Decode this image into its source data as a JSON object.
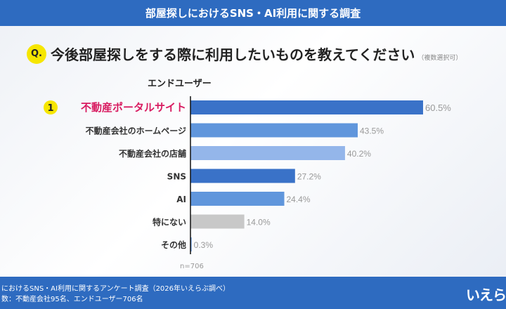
{
  "header": {
    "title": "部屋探しにおけるSNS・AI利用に関する調査"
  },
  "question": {
    "badge": "Q.",
    "text": "今後部屋探しをする際に利用したいものを教えてください",
    "note": "（複数選択可）"
  },
  "chart_data": {
    "type": "bar",
    "orientation": "horizontal",
    "subtitle": "エンドユーザー",
    "categories": [
      "不動産ポータルサイト",
      "不動産会社のホームページ",
      "不動産会社の店舗",
      "SNS",
      "AI",
      "特にない",
      "その他"
    ],
    "values": [
      60.5,
      43.5,
      40.2,
      27.2,
      24.4,
      14.0,
      0.3
    ],
    "unit": "%",
    "colors": [
      "#3a72c8",
      "#6096dc",
      "#94b6ea",
      "#3a72c8",
      "#6096dc",
      "#c8c8c8",
      "#6096dc"
    ],
    "highlight": {
      "rank": "1",
      "index": 0,
      "color": "#d81b60"
    },
    "note": "n=706",
    "xlim": [
      0,
      60.5
    ]
  },
  "footer": {
    "line1": "におけるSNS・AI利用に関するアンケート調査（2026年いえらぶ調べ）",
    "line2": "数：不動産会社95名、エンドユーザー706名",
    "logo": "いえら"
  }
}
